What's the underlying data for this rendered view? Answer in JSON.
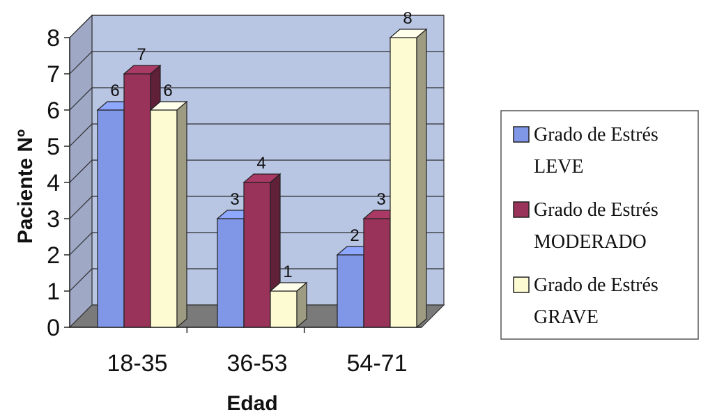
{
  "chart_data": {
    "type": "bar",
    "categories": [
      "18-35",
      "36-53",
      "54-71"
    ],
    "series": [
      {
        "name": "Grado de Estrés LEVE",
        "values": [
          6,
          3,
          2
        ],
        "color": "#8096e6"
      },
      {
        "name": "Grado de Estrés MODERADO",
        "values": [
          7,
          4,
          3
        ],
        "color": "#99335a"
      },
      {
        "name": "Grado de Estrés GRAVE",
        "values": [
          6,
          1,
          8
        ],
        "color": "#fdfbd2"
      }
    ],
    "legend_lines": [
      [
        "Grado de Estrés",
        "LEVE"
      ],
      [
        "Grado de Estrés",
        "MODERADO"
      ],
      [
        "Grado de Estrés",
        "GRAVE"
      ]
    ],
    "xlabel": "Edad",
    "ylabel": "Paciente Nº",
    "ylim": [
      0,
      8
    ],
    "yticks": [
      0,
      1,
      2,
      3,
      4,
      5,
      6,
      7,
      8
    ],
    "grid": true,
    "legend_position": "right",
    "wall_color": "#b8c5e3",
    "floor_color": "#7a7a7a"
  }
}
